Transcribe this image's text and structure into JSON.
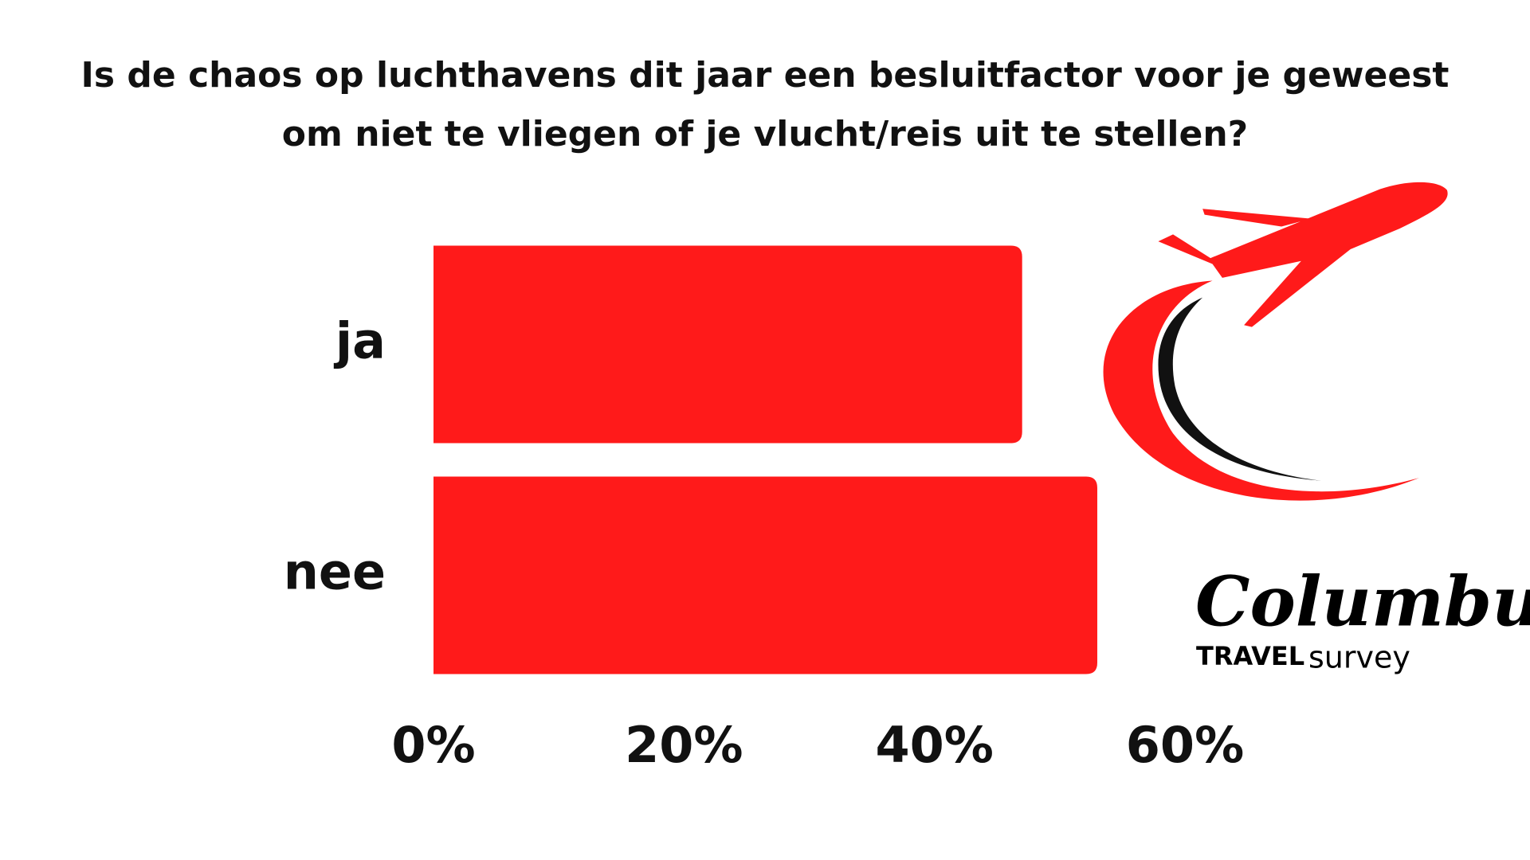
{
  "chart_data": {
    "type": "bar",
    "orientation": "horizontal",
    "title": "Is de chaos op luchthavens dit jaar een besluitfactor voor je geweest om niet te vliegen of je vlucht/reis uit te stellen?",
    "categories": [
      "ja",
      "nee"
    ],
    "values": [
      47,
      53
    ],
    "color": "#ff1a1a",
    "xlim": [
      0,
      60
    ],
    "xticks": [
      {
        "value": 0,
        "label": "0%"
      },
      {
        "value": 20,
        "label": "20%"
      },
      {
        "value": 40,
        "label": "40%"
      },
      {
        "value": 60,
        "label": "60%"
      }
    ],
    "grid": false
  },
  "logo": {
    "name": "Columbus",
    "line": "TRAVEL",
    "sub": "survey"
  }
}
